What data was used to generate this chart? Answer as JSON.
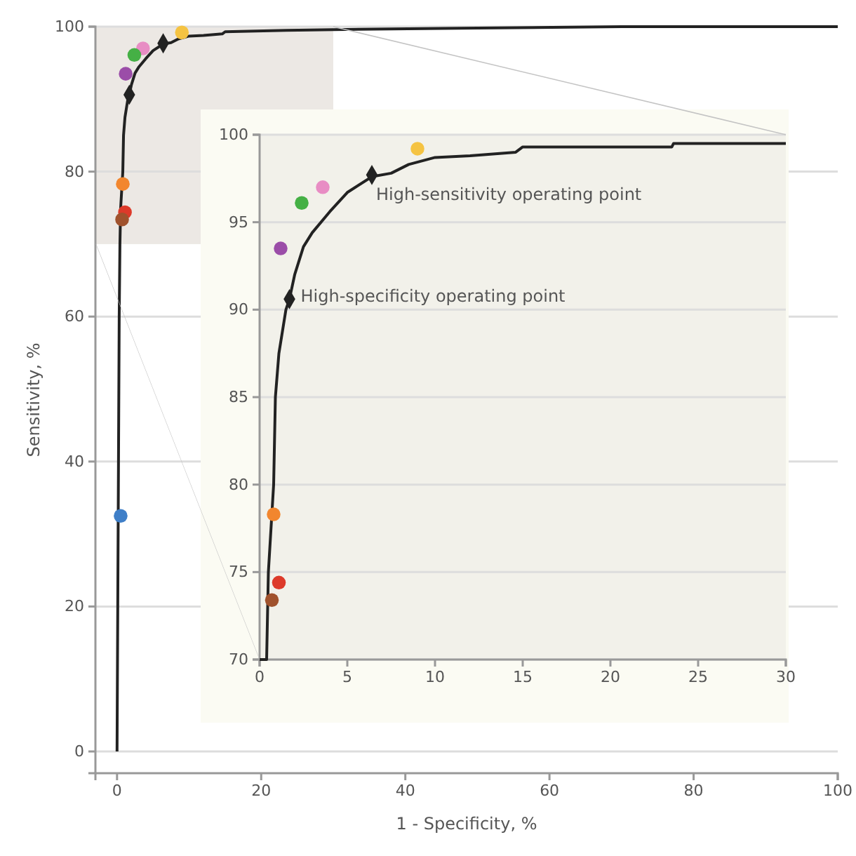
{
  "chart_data": [
    {
      "type": "line",
      "xlabel": "1 - Specificity, %",
      "ylabel": "Sensitivity, %",
      "xlim": [
        -3,
        100
      ],
      "ylim": [
        -3,
        100
      ],
      "xticks": [
        0,
        20,
        40,
        60,
        80,
        100
      ],
      "yticks": [
        0,
        20,
        40,
        60,
        80,
        100
      ],
      "grid": "y",
      "series": [
        {
          "color": "#222222",
          "x": [
            0,
            0.1,
            0.2,
            0.3,
            0.4,
            0.5,
            0.8,
            0.9,
            1.1,
            1.5,
            1.7,
            2,
            2.5,
            3,
            4,
            5,
            6.4,
            7.5,
            8.5,
            10,
            12,
            14.6,
            15,
            23.5,
            30,
            50,
            70,
            100
          ],
          "values": [
            0,
            20,
            40,
            60,
            70,
            75,
            80,
            85,
            87.5,
            90,
            90.6,
            92,
            93.6,
            94.4,
            95.6,
            96.7,
            97.6,
            97.8,
            98.3,
            98.7,
            98.8,
            99,
            99.3,
            99.5,
            99.6,
            99.8,
            100,
            100
          ]
        },
        {
          "type": "scatter",
          "marker": "diamond",
          "color": "#222222",
          "x": [
            1.7,
            6.4
          ],
          "values": [
            90.6,
            97.7
          ]
        },
        {
          "type": "scatter",
          "marker": "circle",
          "colors": [
            "#f5c342",
            "#e88dc4",
            "#45b045",
            "#9b4da8",
            "#f2862e",
            "#dd3a2a",
            "#a0522d",
            "#3f7fc8"
          ],
          "x": [
            9,
            3.6,
            2.4,
            1.2,
            0.8,
            1.1,
            0.7,
            0.5
          ],
          "values": [
            99.2,
            97,
            96.1,
            93.5,
            78.3,
            74.4,
            73.4,
            32.5
          ]
        }
      ]
    },
    {
      "type": "line",
      "xlim": [
        0,
        30
      ],
      "ylim": [
        70,
        100
      ],
      "xticks": [
        0,
        5,
        10,
        15,
        20,
        25,
        30
      ],
      "yticks": [
        70,
        75,
        80,
        85,
        90,
        95,
        100
      ],
      "grid": "y",
      "annotations": [
        {
          "text": "High-sensitivity operating point",
          "x": 6.4,
          "y": 97.7
        },
        {
          "text": "High-specificity operating point",
          "x": 1.7,
          "y": 90.6
        }
      ],
      "series": [
        {
          "color": "#222222",
          "x": [
            0,
            0.4,
            0.5,
            0.8,
            0.9,
            1.1,
            1.5,
            1.7,
            2,
            2.5,
            3,
            4,
            5,
            6.4,
            7.5,
            8.5,
            10,
            12,
            14.6,
            15,
            23.5,
            23.6,
            30
          ],
          "values": [
            70,
            70,
            75,
            80,
            85,
            87.5,
            90,
            90.6,
            92,
            93.6,
            94.4,
            95.6,
            96.7,
            97.6,
            97.8,
            98.3,
            98.7,
            98.8,
            99,
            99.3,
            99.3,
            99.5,
            99.5
          ]
        },
        {
          "type": "scatter",
          "marker": "diamond",
          "color": "#222222",
          "x": [
            1.7,
            6.4
          ],
          "values": [
            90.6,
            97.7
          ]
        },
        {
          "type": "scatter",
          "marker": "circle",
          "colors": [
            "#f5c342",
            "#e88dc4",
            "#45b045",
            "#9b4da8",
            "#f2862e",
            "#dd3a2a",
            "#a0522d"
          ],
          "x": [
            9,
            3.6,
            2.4,
            1.2,
            0.8,
            1.1,
            0.7
          ],
          "values": [
            99.2,
            97,
            96.1,
            93.5,
            78.3,
            74.4,
            73.4
          ]
        }
      ]
    }
  ]
}
